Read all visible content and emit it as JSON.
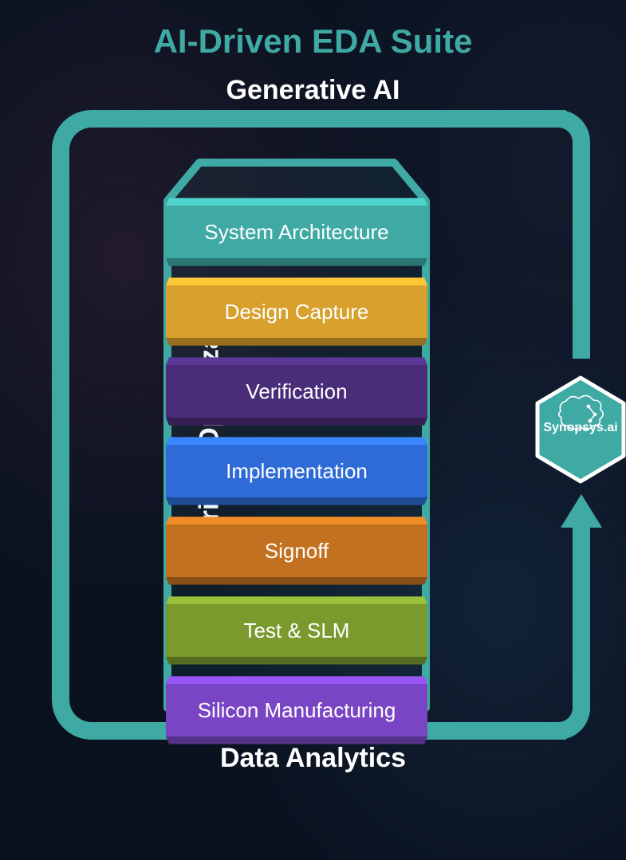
{
  "title": {
    "text": "AI-Driven EDA Suite",
    "color": "#3fa9a3",
    "fontsize": 42,
    "fontweight": 700
  },
  "frame": {
    "pipe_color": "#3fa9a3",
    "pipe_thickness": 22,
    "corner_radius": 50,
    "labels": {
      "top": "Generative AI",
      "left": "AI-Driven Optimization",
      "bottom": "Data Analytics",
      "color": "#ffffff",
      "fontsize": 34,
      "fontweight": 700
    },
    "arrow": {
      "direction": "up",
      "head_width": 52,
      "head_height": 42
    }
  },
  "chip_outline": {
    "stroke": "#3fa9a3",
    "stroke_width": 10,
    "fill": "rgba(63,169,163,0.08)",
    "notch_depth": 28
  },
  "stack": {
    "type": "infographic",
    "block_width": 328,
    "block_front_height": 68,
    "block_depth": 14,
    "label_fontsize": 26,
    "label_color": "#ffffff",
    "blocks": [
      {
        "label": "System Architecture",
        "color": "#3fa9a3"
      },
      {
        "label": "Design Capture",
        "color": "#d8a02c"
      },
      {
        "label": "Verification",
        "color": "#4a2d78"
      },
      {
        "label": "Implementation",
        "color": "#2e6bd6"
      },
      {
        "label": "Signoff",
        "color": "#c1711f"
      },
      {
        "label": "Test & SLM",
        "color": "#7a9a2e"
      },
      {
        "label": "Silicon Manufacturing",
        "color": "#7a45c4"
      }
    ]
  },
  "badge": {
    "label": "Synopsys.ai",
    "hex_fill": "#3fa9a3",
    "hex_stroke": "#ffffff",
    "hex_stroke_width": 5,
    "label_color": "#ffffff",
    "label_fontsize": 16,
    "icon": "brain-circuit"
  },
  "background": {
    "base_color": "#0a1220"
  }
}
